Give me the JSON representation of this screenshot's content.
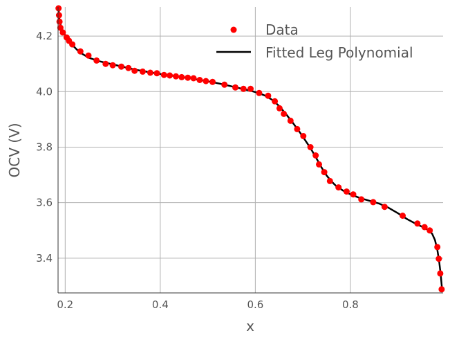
{
  "chart_data": {
    "type": "scatter",
    "xlabel": "x",
    "ylabel": "OCV (V)",
    "xlim": [
      0.185,
      0.995
    ],
    "ylim": [
      3.275,
      4.305
    ],
    "xticks": [
      "0.2",
      "0.4",
      "0.6",
      "0.8"
    ],
    "xtick_values": [
      0.2,
      0.4,
      0.6,
      0.8
    ],
    "yticks": [
      "3.4",
      "3.6",
      "3.8",
      "4.0",
      "4.2"
    ],
    "ytick_values": [
      3.4,
      3.6,
      3.8,
      4.0,
      4.2
    ],
    "grid": true,
    "legend_position": "top-right",
    "series": [
      {
        "name": "Data",
        "kind": "scatter",
        "color": "#ff0000",
        "points": [
          [
            0.186,
            4.3
          ],
          [
            0.187,
            4.275
          ],
          [
            0.188,
            4.252
          ],
          [
            0.19,
            4.23
          ],
          [
            0.195,
            4.213
          ],
          [
            0.203,
            4.195
          ],
          [
            0.208,
            4.183
          ],
          [
            0.215,
            4.17
          ],
          [
            0.232,
            4.145
          ],
          [
            0.249,
            4.13
          ],
          [
            0.266,
            4.112
          ],
          [
            0.285,
            4.1
          ],
          [
            0.3,
            4.095
          ],
          [
            0.318,
            4.09
          ],
          [
            0.333,
            4.085
          ],
          [
            0.346,
            4.075
          ],
          [
            0.363,
            4.072
          ],
          [
            0.379,
            4.068
          ],
          [
            0.393,
            4.066
          ],
          [
            0.408,
            4.06
          ],
          [
            0.42,
            4.058
          ],
          [
            0.433,
            4.055
          ],
          [
            0.445,
            4.052
          ],
          [
            0.458,
            4.05
          ],
          [
            0.47,
            4.048
          ],
          [
            0.483,
            4.042
          ],
          [
            0.496,
            4.038
          ],
          [
            0.51,
            4.035
          ],
          [
            0.535,
            4.025
          ],
          [
            0.558,
            4.015
          ],
          [
            0.575,
            4.01
          ],
          [
            0.59,
            4.01
          ],
          [
            0.608,
            3.995
          ],
          [
            0.627,
            3.985
          ],
          [
            0.641,
            3.965
          ],
          [
            0.651,
            3.94
          ],
          [
            0.66,
            3.92
          ],
          [
            0.674,
            3.895
          ],
          [
            0.688,
            3.865
          ],
          [
            0.701,
            3.84
          ],
          [
            0.716,
            3.8
          ],
          [
            0.727,
            3.77
          ],
          [
            0.734,
            3.738
          ],
          [
            0.745,
            3.71
          ],
          [
            0.757,
            3.678
          ],
          [
            0.775,
            3.655
          ],
          [
            0.792,
            3.64
          ],
          [
            0.806,
            3.63
          ],
          [
            0.823,
            3.612
          ],
          [
            0.848,
            3.602
          ],
          [
            0.872,
            3.585
          ],
          [
            0.91,
            3.553
          ],
          [
            0.941,
            3.525
          ],
          [
            0.956,
            3.512
          ],
          [
            0.967,
            3.5
          ],
          [
            0.983,
            3.44
          ],
          [
            0.986,
            3.398
          ],
          [
            0.989,
            3.345
          ],
          [
            0.992,
            3.288
          ]
        ]
      },
      {
        "name": "Fitted Leg Polynomial",
        "kind": "line",
        "color": "#000000",
        "points": [
          [
            0.186,
            4.3
          ],
          [
            0.188,
            4.255
          ],
          [
            0.192,
            4.23
          ],
          [
            0.198,
            4.208
          ],
          [
            0.205,
            4.19
          ],
          [
            0.215,
            4.168
          ],
          [
            0.23,
            4.142
          ],
          [
            0.25,
            4.122
          ],
          [
            0.27,
            4.11
          ],
          [
            0.29,
            4.102
          ],
          [
            0.31,
            4.094
          ],
          [
            0.33,
            4.086
          ],
          [
            0.35,
            4.078
          ],
          [
            0.37,
            4.072
          ],
          [
            0.39,
            4.066
          ],
          [
            0.41,
            4.061
          ],
          [
            0.43,
            4.056
          ],
          [
            0.45,
            4.051
          ],
          [
            0.47,
            4.046
          ],
          [
            0.49,
            4.04
          ],
          [
            0.51,
            4.034
          ],
          [
            0.53,
            4.027
          ],
          [
            0.55,
            4.019
          ],
          [
            0.57,
            4.011
          ],
          [
            0.59,
            4.003
          ],
          [
            0.605,
            3.996
          ],
          [
            0.62,
            3.986
          ],
          [
            0.635,
            3.971
          ],
          [
            0.65,
            3.948
          ],
          [
            0.665,
            3.918
          ],
          [
            0.68,
            3.885
          ],
          [
            0.695,
            3.85
          ],
          [
            0.71,
            3.812
          ],
          [
            0.72,
            3.785
          ],
          [
            0.73,
            3.755
          ],
          [
            0.74,
            3.725
          ],
          [
            0.75,
            3.698
          ],
          [
            0.76,
            3.677
          ],
          [
            0.77,
            3.66
          ],
          [
            0.785,
            3.643
          ],
          [
            0.8,
            3.63
          ],
          [
            0.82,
            3.617
          ],
          [
            0.84,
            3.607
          ],
          [
            0.86,
            3.597
          ],
          [
            0.88,
            3.582
          ],
          [
            0.9,
            3.562
          ],
          [
            0.92,
            3.54
          ],
          [
            0.94,
            3.522
          ],
          [
            0.955,
            3.51
          ],
          [
            0.965,
            3.5
          ],
          [
            0.972,
            3.488
          ],
          [
            0.978,
            3.465
          ],
          [
            0.983,
            3.43
          ],
          [
            0.987,
            3.385
          ],
          [
            0.99,
            3.34
          ],
          [
            0.993,
            3.285
          ]
        ]
      }
    ]
  }
}
